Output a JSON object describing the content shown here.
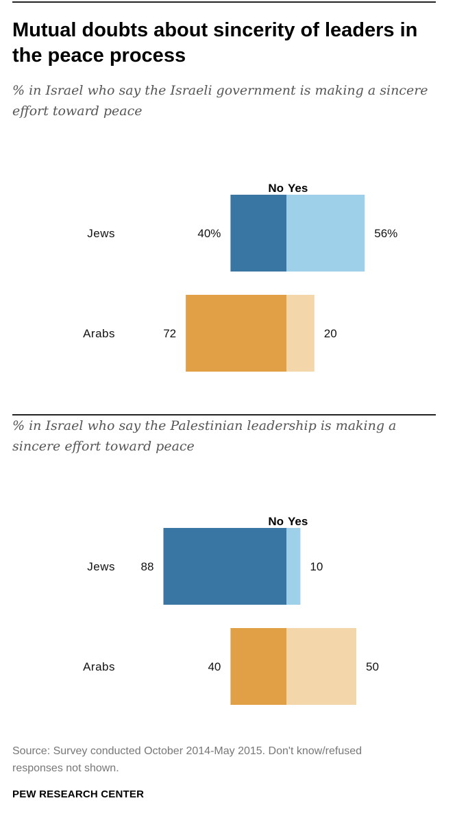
{
  "title": "Mutual doubts about sincerity of leaders in the peace process",
  "source": "Source: Survey conducted October 2014-May 2015. Don't know/refused responses not shown.",
  "brand": "PEW RESEARCH CENTER",
  "colors": {
    "jews_no": "#3a76a3",
    "jews_yes": "#9fd0ea",
    "arabs_no": "#e1a045",
    "arabs_yes": "#f3d6a9"
  },
  "chart_data": [
    {
      "type": "bar",
      "orientation": "horizontal-diverging",
      "subtitle": "% in Israel who say the Israeli government is making a sincere effort toward peace",
      "categories": [
        "Jews",
        "Arabs"
      ],
      "series": [
        {
          "name": "No",
          "values": [
            40,
            72
          ],
          "labels": [
            "40%",
            "72"
          ]
        },
        {
          "name": "Yes",
          "values": [
            56,
            20
          ],
          "labels": [
            "56%",
            "20"
          ]
        }
      ]
    },
    {
      "type": "bar",
      "orientation": "horizontal-diverging",
      "subtitle": "% in Israel who say the Palestinian leadership is making a sincere effort toward peace",
      "categories": [
        "Jews",
        "Arabs"
      ],
      "series": [
        {
          "name": "No",
          "values": [
            88,
            40
          ],
          "labels": [
            "88",
            "40"
          ]
        },
        {
          "name": "Yes",
          "values": [
            10,
            50
          ],
          "labels": [
            "10",
            "50"
          ]
        }
      ]
    }
  ]
}
